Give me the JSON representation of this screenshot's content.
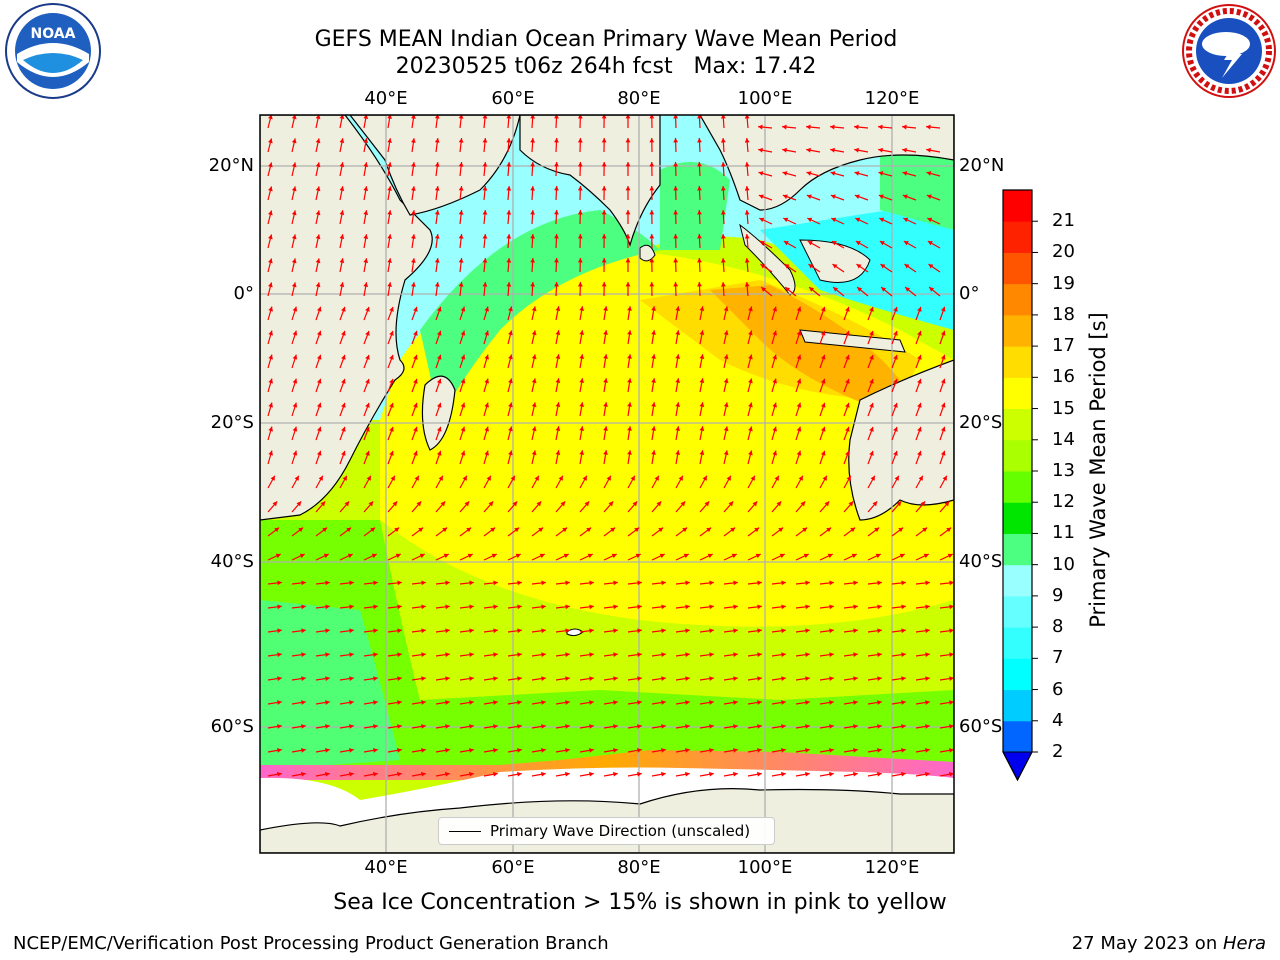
{
  "title": {
    "line1": "GEFS MEAN Indian Ocean Primary Wave Mean Period",
    "line2": "20230525 t06z 264h fcst   Max: 17.42"
  },
  "axes": {
    "lon_ticks": [
      "40°E",
      "60°E",
      "80°E",
      "100°E",
      "120°E"
    ],
    "lat_ticks": [
      "20°N",
      "0°",
      "20°S",
      "40°S",
      "60°S"
    ]
  },
  "colorbar": {
    "label": "Primary Wave Mean Period [s]",
    "levels": [
      "2",
      "4",
      "6",
      "7",
      "8",
      "9",
      "10",
      "11",
      "12",
      "13",
      "14",
      "15",
      "16",
      "17",
      "18",
      "19",
      "20",
      "21"
    ],
    "colors": [
      "#0066ff",
      "#00ccff",
      "#00ffff",
      "#33ffff",
      "#66ffff",
      "#99ffff",
      "#4dff80",
      "#00e600",
      "#66ff00",
      "#aaff00",
      "#ccff00",
      "#ffff00",
      "#ffdd00",
      "#ffb300",
      "#ff8800",
      "#ff5500",
      "#ff2200",
      "#ff0000"
    ]
  },
  "legend": {
    "label": "Primary Wave Direction (unscaled)"
  },
  "subtitle": "Sea Ice Concentration > 15% is shown in pink to yellow",
  "footer": {
    "left": "NCEP/EMC/Verification Post Processing Product Generation Branch",
    "date": "27 May 2023 on ",
    "host": "Hera"
  },
  "logos": {
    "left": "noaa-logo",
    "right": "nws-logo"
  },
  "colors": {
    "land": "#efefe0",
    "ice": "#ffffff",
    "arrows": "#ff0000",
    "grid": "#b0b0b0"
  }
}
